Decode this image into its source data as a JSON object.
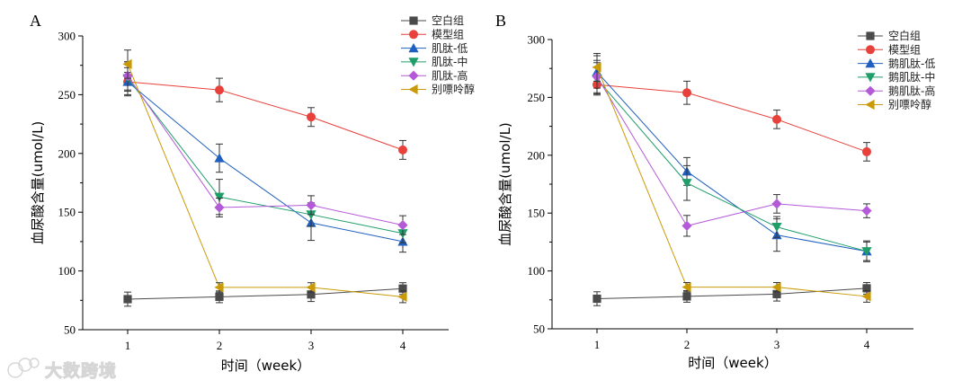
{
  "watermark": {
    "text": "大数跨境"
  },
  "series_colors": {
    "空白组": "#4a4a4a",
    "模型组": "#e8413b",
    "低": "#1f5fbf",
    "中": "#1f9e6a",
    "高": "#b45ad9",
    "别嘌呤醇": "#c99a06"
  },
  "chart_data": [
    {
      "panel": "A",
      "type": "line",
      "xlabel": "时间（week）",
      "ylabel": "血尿酸含量(umol/L)",
      "x": [
        1,
        2,
        3,
        4
      ],
      "xticks": [
        "1",
        "2",
        "3",
        "4"
      ],
      "ylim": [
        50,
        300
      ],
      "yticks": [
        "50",
        "100",
        "150",
        "200",
        "250",
        "300"
      ],
      "legend_position": "top-right",
      "series": [
        {
          "name": "空白组",
          "marker": "square",
          "values": [
            76,
            78,
            80,
            85
          ],
          "err": [
            6,
            5,
            6,
            5
          ]
        },
        {
          "name": "模型组",
          "marker": "circle",
          "values": [
            261,
            254,
            231,
            203
          ],
          "err": [
            8,
            10,
            8,
            8
          ]
        },
        {
          "name": "肌肽-低",
          "marker": "triangle-up",
          "values": [
            261,
            196,
            141,
            125
          ],
          "err": [
            12,
            12,
            15,
            9
          ]
        },
        {
          "name": "肌肽-中",
          "marker": "triangle-down",
          "values": [
            264,
            163,
            148,
            132
          ],
          "err": [
            14,
            15,
            10,
            8
          ]
        },
        {
          "name": "肌肽-高",
          "marker": "diamond",
          "values": [
            266,
            154,
            156,
            139
          ],
          "err": [
            12,
            8,
            8,
            8
          ]
        },
        {
          "name": "别嘌呤醇",
          "marker": "triangle-left",
          "values": [
            276,
            86,
            86,
            78
          ],
          "err": [
            12,
            4,
            4,
            5
          ]
        }
      ]
    },
    {
      "panel": "B",
      "type": "line",
      "xlabel": "时间（week）",
      "ylabel": "血尿酸含量(umol/L)",
      "x": [
        1,
        2,
        3,
        4
      ],
      "xticks": [
        "1",
        "2",
        "3",
        "4"
      ],
      "ylim": [
        50,
        300
      ],
      "yticks": [
        "50",
        "100",
        "150",
        "200",
        "250",
        "300"
      ],
      "legend_position": "top-right",
      "series": [
        {
          "name": "空白组",
          "marker": "square",
          "values": [
            76,
            78,
            80,
            85
          ],
          "err": [
            6,
            5,
            6,
            5
          ]
        },
        {
          "name": "模型组",
          "marker": "circle",
          "values": [
            261,
            254,
            231,
            203
          ],
          "err": [
            8,
            10,
            8,
            8
          ]
        },
        {
          "name": "鹅肌肽-低",
          "marker": "triangle-up",
          "values": [
            272,
            186,
            131,
            117
          ],
          "err": [
            14,
            12,
            14,
            9
          ]
        },
        {
          "name": "鹅肌肽-中",
          "marker": "triangle-down",
          "values": [
            266,
            176,
            138,
            117
          ],
          "err": [
            14,
            15,
            9,
            8
          ]
        },
        {
          "name": "鹅肌肽-高",
          "marker": "diamond",
          "values": [
            268,
            139,
            158,
            152
          ],
          "err": [
            14,
            9,
            8,
            6
          ]
        },
        {
          "name": "别嘌呤醇",
          "marker": "triangle-left",
          "values": [
            276,
            86,
            86,
            78
          ],
          "err": [
            12,
            4,
            4,
            5
          ]
        }
      ]
    }
  ]
}
